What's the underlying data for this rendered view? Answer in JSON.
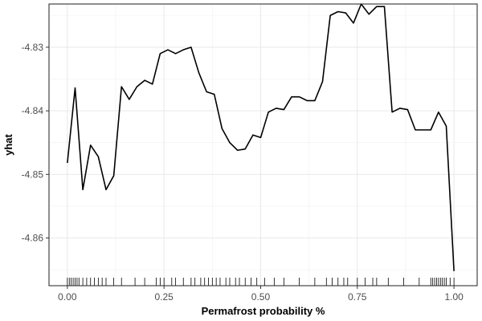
{
  "chart_data": {
    "type": "line",
    "xlabel": "Permafrost probability %",
    "ylabel": "yhat",
    "xlim": [
      -0.0475,
      1.06
    ],
    "ylim": [
      -4.8675,
      -4.8232
    ],
    "x_ticks": [
      0.0,
      0.25,
      0.5,
      0.75,
      1.0
    ],
    "x_tick_labels": [
      "0.00",
      "0.25",
      "0.50",
      "0.75",
      "1.00"
    ],
    "y_ticks": [
      -4.83,
      -4.84,
      -4.85,
      -4.86
    ],
    "y_tick_labels": [
      "-4.83",
      "-4.84",
      "-4.85",
      "-4.86"
    ],
    "grid": true,
    "legend": "none",
    "series": [
      {
        "x": [
          0.0,
          0.02,
          0.04,
          0.06,
          0.08,
          0.1,
          0.12,
          0.14,
          0.16,
          0.18,
          0.2,
          0.22,
          0.24,
          0.26,
          0.28,
          0.3,
          0.32,
          0.34,
          0.36,
          0.38,
          0.4,
          0.42,
          0.44,
          0.46,
          0.48,
          0.5,
          0.52,
          0.54,
          0.56,
          0.58,
          0.6,
          0.62,
          0.64,
          0.66,
          0.68,
          0.7,
          0.72,
          0.74,
          0.76,
          0.78,
          0.8,
          0.82,
          0.84,
          0.86,
          0.88,
          0.9,
          0.92,
          0.94,
          0.96,
          0.98,
          1.0
        ],
        "values": [
          -4.8482,
          -4.8364,
          -4.8524,
          -4.8454,
          -4.8472,
          -4.8524,
          -4.8502,
          -4.8362,
          -4.8382,
          -4.8362,
          -4.8352,
          -4.8358,
          -4.831,
          -4.8304,
          -4.831,
          -4.8304,
          -4.83,
          -4.834,
          -4.837,
          -4.8374,
          -4.8428,
          -4.845,
          -4.8462,
          -4.846,
          -4.8438,
          -4.8442,
          -4.8402,
          -4.8396,
          -4.8398,
          -4.8378,
          -4.8378,
          -4.8384,
          -4.8384,
          -4.8354,
          -4.825,
          -4.8244,
          -4.8246,
          -4.8262,
          -4.8232,
          -4.8248,
          -4.8236,
          -4.8236,
          -4.8402,
          -4.8396,
          -4.8398,
          -4.843,
          -4.843,
          -4.843,
          -4.8402,
          -4.8424,
          -4.8652
        ]
      }
    ],
    "rug_x": [
      0.0,
      0.005,
      0.01,
      0.015,
      0.02,
      0.025,
      0.03,
      0.04,
      0.05,
      0.06,
      0.07,
      0.08,
      0.09,
      0.1,
      0.12,
      0.14,
      0.175,
      0.2,
      0.23,
      0.24,
      0.25,
      0.27,
      0.28,
      0.3,
      0.32,
      0.33,
      0.345,
      0.355,
      0.365,
      0.375,
      0.385,
      0.395,
      0.41,
      0.42,
      0.435,
      0.445,
      0.46,
      0.475,
      0.49,
      0.51,
      0.535,
      0.56,
      0.6,
      0.64,
      0.67,
      0.685,
      0.7,
      0.715,
      0.725,
      0.75,
      0.77,
      0.79,
      0.8,
      0.83,
      0.87,
      0.91,
      0.94,
      0.945,
      0.95,
      0.955,
      0.96,
      0.965,
      0.97,
      0.975,
      0.98,
      0.99,
      1.0
    ]
  }
}
